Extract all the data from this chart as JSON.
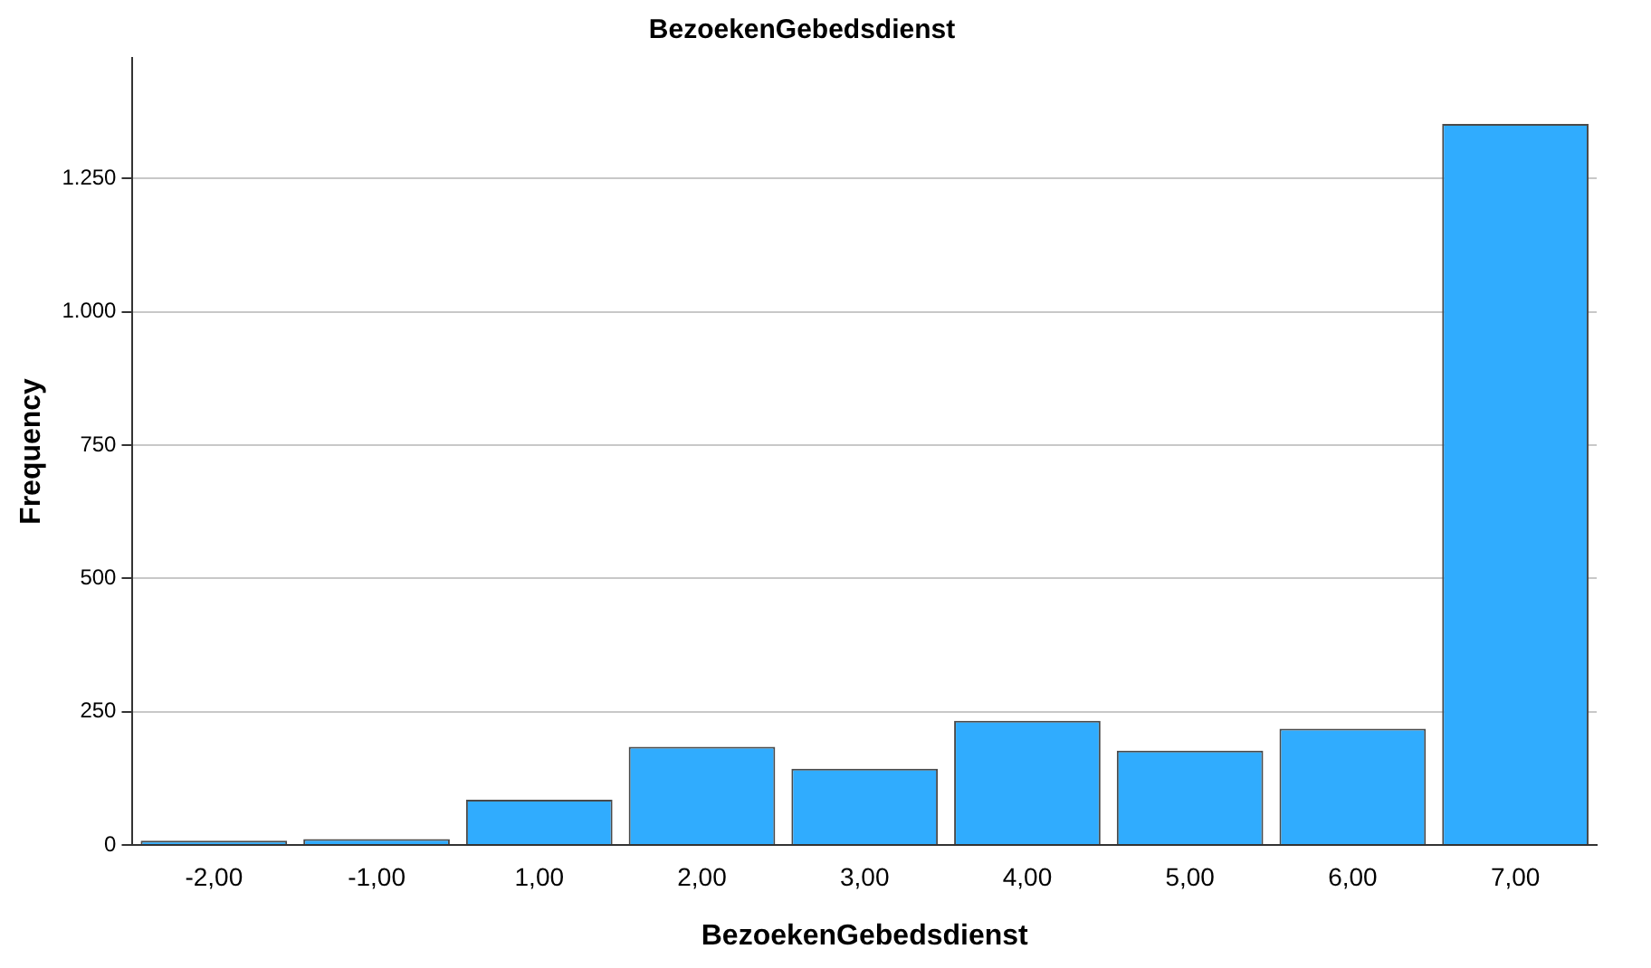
{
  "chart_data": {
    "type": "bar",
    "title": "BezoekenGebedsdienst",
    "xlabel": "BezoekenGebedsdienst",
    "ylabel": "Frequency",
    "categories": [
      "-2,00",
      "-1,00",
      "1,00",
      "2,00",
      "3,00",
      "4,00",
      "5,00",
      "6,00",
      "7,00"
    ],
    "values": [
      8,
      11,
      85,
      184,
      143,
      233,
      177,
      218,
      1352
    ],
    "color": "#30acfe",
    "ylim": [
      0,
      1476
    ],
    "yticks": [
      0,
      250,
      500,
      750,
      {
        "value": 1000,
        "label": "1.000"
      },
      {
        "value": 1250,
        "label": "1.250"
      }
    ],
    "grid": "y"
  }
}
